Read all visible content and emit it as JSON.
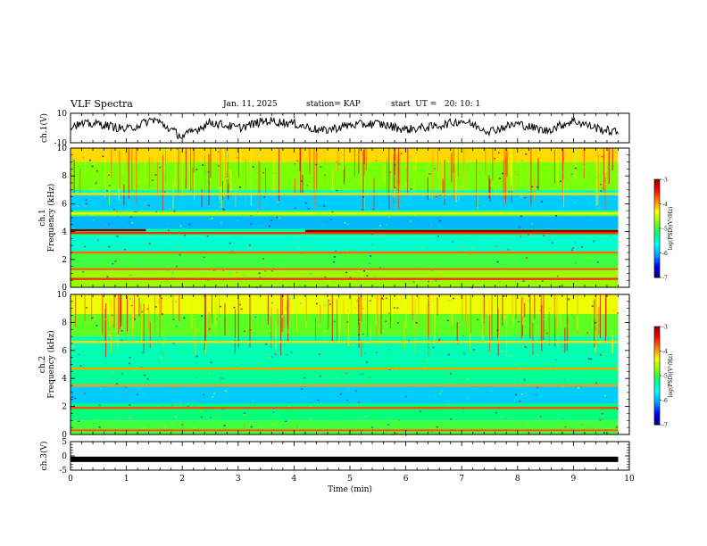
{
  "header": {
    "title": "VLF Spectra",
    "date": "Jan. 11, 2025",
    "station": "station= KAP",
    "start": "start  UT =   20: 10: 1"
  },
  "panels": {
    "ch1_wave": {
      "ylabel": "ch.1(V)",
      "yticks": [
        "10",
        "-10"
      ]
    },
    "ch1_spec": {
      "ylabel": "ch.1 Frequency (kHz)",
      "yticks": [
        "0",
        "2",
        "4",
        "6",
        "8",
        "10"
      ]
    },
    "ch2_spec": {
      "ylabel": "ch.2 Frequency (kHz)",
      "yticks": [
        "0",
        "2",
        "4",
        "6",
        "8",
        "10"
      ]
    },
    "ch3_wave": {
      "ylabel": "ch.3(V)",
      "yticks": [
        "5",
        "0",
        "-5"
      ]
    }
  },
  "colorbar": {
    "label": "log(PSD)(V²/Hz)",
    "ticks": [
      "-3",
      "-4",
      "-5",
      "-6",
      "-7"
    ],
    "colors": [
      "#000080",
      "#0000ff",
      "#00a0ff",
      "#00ffff",
      "#00ff80",
      "#80ff00",
      "#ffff00",
      "#ff8000",
      "#ff0000",
      "#800000"
    ]
  },
  "chart_data": [
    {
      "type": "line",
      "name": "ch.1 waveform",
      "xlabel": "",
      "ylabel": "ch.1(V)",
      "xlim": [
        0,
        10
      ],
      "ylim": [
        -10,
        10
      ],
      "x": [
        0,
        0.5,
        1,
        1.5,
        2,
        2.5,
        3,
        3.5,
        4,
        4.5,
        5,
        5.5,
        6,
        6.5,
        7,
        7.5,
        8,
        8.5,
        9,
        9.5,
        9.8
      ],
      "y": [
        2,
        3,
        -1,
        6,
        -6,
        4,
        0,
        5,
        3,
        -2,
        2,
        3,
        -1,
        1,
        5,
        -2,
        3,
        -2,
        5,
        -1,
        -3
      ]
    },
    {
      "type": "heatmap",
      "name": "ch.1 spectrogram",
      "xlabel": "Time (min)",
      "ylabel": "ch.1 Frequency (kHz)",
      "xlim": [
        0,
        10
      ],
      "ylim": [
        0,
        10
      ],
      "data_end_min": 9.8,
      "color_scale": {
        "label": "log(PSD)(V²/Hz)",
        "min": -7,
        "max": -3
      },
      "bands_khz": [
        {
          "f_low": 9.0,
          "f_high": 10.0,
          "log_psd": -4.2
        },
        {
          "f_low": 7.0,
          "f_high": 9.0,
          "log_psd": -4.8
        },
        {
          "f_low": 6.6,
          "f_high": 7.0,
          "log_psd": -5.4
        },
        {
          "f_low": 5.5,
          "f_high": 6.6,
          "log_psd": -5.9
        },
        {
          "f_low": 5.1,
          "f_high": 5.5,
          "log_psd": -5.0
        },
        {
          "f_low": 4.2,
          "f_high": 5.1,
          "log_psd": -6.0
        },
        {
          "f_low": 3.7,
          "f_high": 4.2,
          "log_psd": -5.3
        },
        {
          "f_low": 2.6,
          "f_high": 3.7,
          "log_psd": -5.5
        },
        {
          "f_low": 1.2,
          "f_high": 2.6,
          "log_psd": -5.0
        },
        {
          "f_low": 0.0,
          "f_high": 1.2,
          "log_psd": -4.7
        }
      ],
      "lines_khz": [
        {
          "f": 4.1,
          "log_psd": -3.0,
          "t_start": 0,
          "t_end": 1.35
        },
        {
          "f": 4.05,
          "log_psd": -3.0,
          "t_start": 4.2,
          "t_end": 9.8
        },
        {
          "f": 3.9,
          "log_psd": -3.6,
          "t_start": 0,
          "t_end": 9.8
        },
        {
          "f": 2.5,
          "log_psd": -3.8,
          "t_start": 0,
          "t_end": 9.8
        },
        {
          "f": 1.3,
          "log_psd": -3.8,
          "t_start": 0,
          "t_end": 9.8
        },
        {
          "f": 0.6,
          "log_psd": -3.6,
          "t_start": 0,
          "t_end": 9.8
        },
        {
          "f": 6.7,
          "log_psd": -4.2,
          "t_start": 0,
          "t_end": 9.8
        },
        {
          "f": 5.3,
          "log_psd": -4.3,
          "t_start": 0,
          "t_end": 9.8
        }
      ]
    },
    {
      "type": "heatmap",
      "name": "ch.2 spectrogram",
      "xlabel": "Time (min)",
      "ylabel": "ch.2 Frequency (kHz)",
      "xlim": [
        0,
        10
      ],
      "ylim": [
        0,
        10
      ],
      "data_end_min": 9.8,
      "color_scale": {
        "label": "log(PSD)(V²/Hz)",
        "min": -7,
        "max": -3
      },
      "bands_khz": [
        {
          "f_low": 8.6,
          "f_high": 10.0,
          "log_psd": -4.4
        },
        {
          "f_low": 7.0,
          "f_high": 8.6,
          "log_psd": -4.9
        },
        {
          "f_low": 5.0,
          "f_high": 7.0,
          "log_psd": -5.4
        },
        {
          "f_low": 3.6,
          "f_high": 5.0,
          "log_psd": -5.3
        },
        {
          "f_low": 2.2,
          "f_high": 3.6,
          "log_psd": -5.9
        },
        {
          "f_low": 1.0,
          "f_high": 2.2,
          "log_psd": -5.2
        },
        {
          "f_low": 0.0,
          "f_high": 1.0,
          "log_psd": -5.0
        }
      ],
      "lines_khz": [
        {
          "f": 4.7,
          "log_psd": -4.0,
          "t_start": 0,
          "t_end": 9.8
        },
        {
          "f": 3.5,
          "log_psd": -4.0,
          "t_start": 0,
          "t_end": 9.8
        },
        {
          "f": 1.9,
          "log_psd": -3.7,
          "t_start": 0,
          "t_end": 9.8
        },
        {
          "f": 0.3,
          "log_psd": -3.8,
          "t_start": 0,
          "t_end": 9.8
        },
        {
          "f": 6.6,
          "log_psd": -4.2,
          "t_start": 0,
          "t_end": 9.8
        }
      ]
    },
    {
      "type": "line",
      "name": "ch.3 waveform",
      "xlabel": "Time (min)",
      "ylabel": "ch.3(V)",
      "xlim": [
        0,
        10
      ],
      "ylim": [
        -5,
        5
      ],
      "x": [
        0,
        9.8
      ],
      "y": [
        -1.2,
        -1.2
      ],
      "xticks": [
        "0",
        "1",
        "2",
        "3",
        "4",
        "5",
        "6",
        "7",
        "8",
        "9",
        "10"
      ]
    }
  ]
}
